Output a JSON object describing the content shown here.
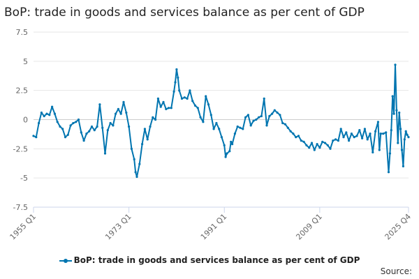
{
  "chart_data": {
    "type": "line",
    "title": "BoP: trade in goods and services balance as per cent of GDP",
    "xlabel": "",
    "ylabel": "",
    "ylim": [
      -7.5,
      7.5
    ],
    "y_ticks": [
      7.5,
      5,
      2.5,
      0,
      -2.5,
      -5,
      -7.5
    ],
    "y_tick_labels": [
      "7.5",
      "5",
      "2.5",
      "0",
      "-2.5",
      "-5",
      "-7.5"
    ],
    "x_range": [
      1955.0,
      2025.75
    ],
    "x_ticks": [
      1955.0,
      1973.0,
      1991.0,
      2009.0,
      2025.75
    ],
    "x_tick_labels": [
      "1955 Q1",
      "1973 Q1",
      "1991 Q1",
      "2009 Q1",
      "2025 Q4"
    ],
    "grid": "horizontal",
    "legend_position": "bottom",
    "series": [
      {
        "name": "BoP: trade in goods and services balance as per cent of GDP",
        "color": "#0075b0",
        "points": [
          [
            1955.0,
            -1.4
          ],
          [
            1955.5,
            -1.5
          ],
          [
            1956.0,
            -0.3
          ],
          [
            1956.5,
            0.6
          ],
          [
            1957.0,
            0.3
          ],
          [
            1957.5,
            0.5
          ],
          [
            1958.0,
            0.4
          ],
          [
            1958.5,
            1.1
          ],
          [
            1959.0,
            0.5
          ],
          [
            1959.5,
            -0.2
          ],
          [
            1960.0,
            -0.6
          ],
          [
            1960.5,
            -0.8
          ],
          [
            1961.0,
            -1.5
          ],
          [
            1961.5,
            -1.3
          ],
          [
            1962.0,
            -0.5
          ],
          [
            1962.5,
            -0.3
          ],
          [
            1963.0,
            -0.2
          ],
          [
            1963.5,
            0.0
          ],
          [
            1964.0,
            -1.1
          ],
          [
            1964.5,
            -1.8
          ],
          [
            1965.0,
            -1.2
          ],
          [
            1965.5,
            -1.0
          ],
          [
            1966.0,
            -0.6
          ],
          [
            1966.5,
            -0.9
          ],
          [
            1967.0,
            -0.6
          ],
          [
            1967.5,
            1.3
          ],
          [
            1968.0,
            -0.7
          ],
          [
            1968.5,
            -2.9
          ],
          [
            1969.0,
            -0.9
          ],
          [
            1969.5,
            -0.3
          ],
          [
            1970.0,
            -0.5
          ],
          [
            1970.5,
            0.5
          ],
          [
            1971.0,
            0.9
          ],
          [
            1971.5,
            0.5
          ],
          [
            1972.0,
            1.5
          ],
          [
            1972.5,
            0.6
          ],
          [
            1973.0,
            -0.6
          ],
          [
            1973.5,
            -2.5
          ],
          [
            1974.0,
            -3.4
          ],
          [
            1974.25,
            -4.5
          ],
          [
            1974.5,
            -4.9
          ],
          [
            1975.0,
            -3.8
          ],
          [
            1975.5,
            -2.1
          ],
          [
            1976.0,
            -0.8
          ],
          [
            1976.5,
            -1.7
          ],
          [
            1977.0,
            -0.6
          ],
          [
            1977.5,
            0.2
          ],
          [
            1978.0,
            0.0
          ],
          [
            1978.5,
            1.8
          ],
          [
            1979.0,
            1.1
          ],
          [
            1979.5,
            1.5
          ],
          [
            1980.0,
            0.9
          ],
          [
            1980.5,
            1.0
          ],
          [
            1981.0,
            1.0
          ],
          [
            1981.5,
            2.4
          ],
          [
            1981.75,
            3.2
          ],
          [
            1982.0,
            4.3
          ],
          [
            1982.25,
            3.6
          ],
          [
            1982.5,
            2.5
          ],
          [
            1983.0,
            1.8
          ],
          [
            1983.5,
            1.9
          ],
          [
            1984.0,
            1.8
          ],
          [
            1984.5,
            2.5
          ],
          [
            1985.0,
            1.6
          ],
          [
            1985.5,
            1.2
          ],
          [
            1986.0,
            1.0
          ],
          [
            1986.5,
            0.2
          ],
          [
            1987.0,
            -0.2
          ],
          [
            1987.5,
            2.0
          ],
          [
            1988.0,
            1.3
          ],
          [
            1988.5,
            0.4
          ],
          [
            1989.0,
            -0.8
          ],
          [
            1989.5,
            -0.3
          ],
          [
            1990.0,
            -0.8
          ],
          [
            1990.5,
            -1.5
          ],
          [
            1991.0,
            -2.2
          ],
          [
            1991.25,
            -3.2
          ],
          [
            1991.5,
            -2.9
          ],
          [
            1992.0,
            -2.7
          ],
          [
            1992.25,
            -1.9
          ],
          [
            1992.5,
            -2.1
          ],
          [
            1993.0,
            -1.2
          ],
          [
            1993.5,
            -0.6
          ],
          [
            1994.0,
            -0.7
          ],
          [
            1994.5,
            -0.8
          ],
          [
            1995.0,
            0.2
          ],
          [
            1995.5,
            0.4
          ],
          [
            1996.0,
            -0.5
          ],
          [
            1996.5,
            -0.1
          ],
          [
            1997.0,
            0.0
          ],
          [
            1997.5,
            0.2
          ],
          [
            1998.0,
            0.3
          ],
          [
            1998.5,
            1.8
          ],
          [
            1999.0,
            -0.5
          ],
          [
            1999.5,
            0.3
          ],
          [
            2000.0,
            0.5
          ],
          [
            2000.5,
            0.8
          ],
          [
            2001.0,
            0.6
          ],
          [
            2001.5,
            0.4
          ],
          [
            2002.0,
            -0.3
          ],
          [
            2002.5,
            -0.4
          ],
          [
            2003.0,
            -0.7
          ],
          [
            2003.5,
            -1.0
          ],
          [
            2004.0,
            -1.2
          ],
          [
            2004.5,
            -1.5
          ],
          [
            2005.0,
            -1.4
          ],
          [
            2005.5,
            -1.8
          ],
          [
            2006.0,
            -1.9
          ],
          [
            2006.5,
            -2.2
          ],
          [
            2007.0,
            -2.4
          ],
          [
            2007.5,
            -2.0
          ],
          [
            2008.0,
            -2.6
          ],
          [
            2008.5,
            -2.1
          ],
          [
            2009.0,
            -2.4
          ],
          [
            2009.5,
            -1.9
          ],
          [
            2010.0,
            -2.0
          ],
          [
            2010.5,
            -2.2
          ],
          [
            2011.0,
            -2.5
          ],
          [
            2011.5,
            -1.8
          ],
          [
            2012.0,
            -1.7
          ],
          [
            2012.5,
            -1.8
          ],
          [
            2013.0,
            -0.8
          ],
          [
            2013.5,
            -1.5
          ],
          [
            2014.0,
            -1.1
          ],
          [
            2014.5,
            -1.8
          ],
          [
            2015.0,
            -1.2
          ],
          [
            2015.5,
            -1.5
          ],
          [
            2016.0,
            -1.4
          ],
          [
            2016.5,
            -0.9
          ],
          [
            2017.0,
            -1.6
          ],
          [
            2017.5,
            -0.8
          ],
          [
            2018.0,
            -1.7
          ],
          [
            2018.5,
            -1.2
          ],
          [
            2019.0,
            -2.8
          ],
          [
            2019.5,
            -1.0
          ],
          [
            2020.0,
            -0.2
          ],
          [
            2020.25,
            -2.6
          ],
          [
            2020.5,
            -1.2
          ],
          [
            2021.0,
            -1.2
          ],
          [
            2021.5,
            -1.1
          ],
          [
            2022.0,
            -4.5
          ],
          [
            2022.25,
            -2.9
          ],
          [
            2022.5,
            -0.9
          ],
          [
            2022.75,
            2.0
          ],
          [
            2023.0,
            0.5
          ],
          [
            2023.25,
            4.7
          ],
          [
            2023.5,
            0.8
          ],
          [
            2023.75,
            -2.0
          ],
          [
            2024.0,
            0.6
          ],
          [
            2024.25,
            -0.8
          ],
          [
            2024.5,
            -2.6
          ],
          [
            2024.75,
            -4.0
          ],
          [
            2025.0,
            -1.7
          ],
          [
            2025.25,
            -1.0
          ],
          [
            2025.5,
            -1.3
          ],
          [
            2025.75,
            -1.5
          ]
        ]
      }
    ]
  },
  "legend": {
    "label": "BoP: trade in goods and services balance as per cent of GDP"
  },
  "source": {
    "label": "Source:"
  }
}
